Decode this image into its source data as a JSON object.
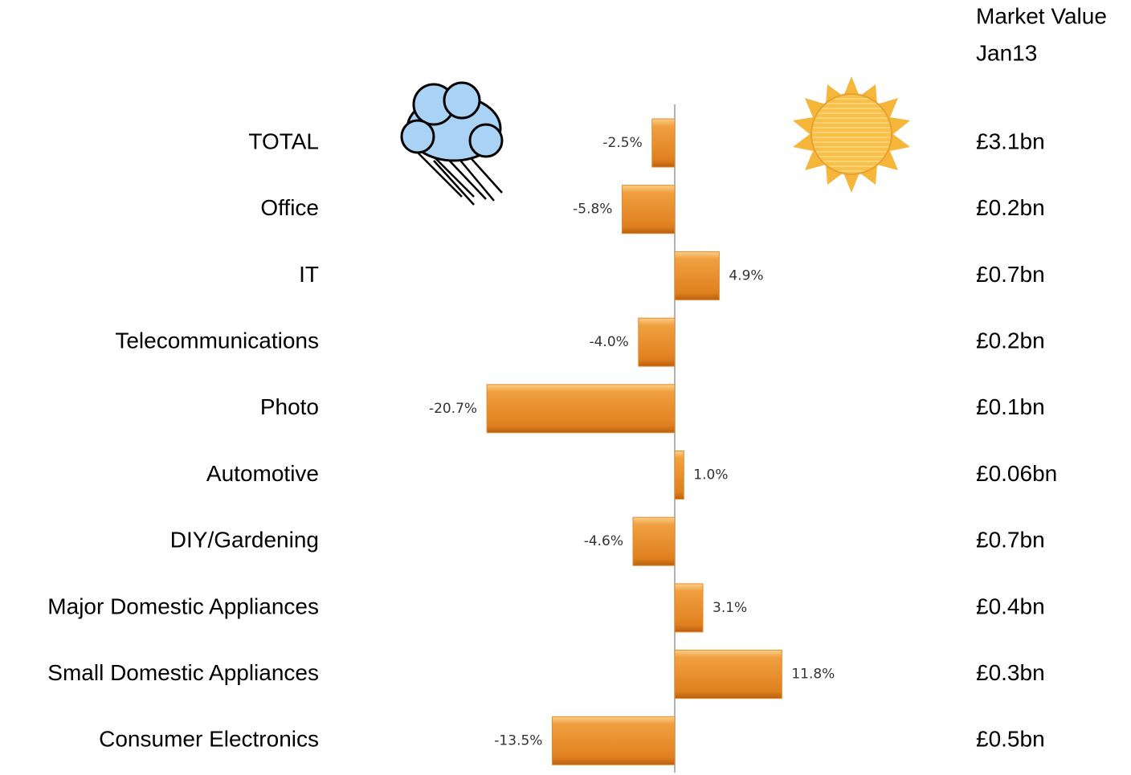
{
  "chart_data": {
    "type": "bar",
    "orientation": "horizontal",
    "categories": [
      "TOTAL",
      "Office",
      "IT",
      "Telecommunications",
      "Photo",
      "Automotive",
      "DIY/Gardening",
      "Major Domestic Appliances",
      "Small Domestic Appliances",
      "Consumer Electronics"
    ],
    "values": [
      -2.5,
      -5.8,
      4.9,
      -4.0,
      -20.7,
      1.0,
      -4.6,
      3.1,
      11.8,
      -13.5
    ],
    "value_labels": [
      "-2.5%",
      "-5.8%",
      "4.9%",
      "-4.0%",
      "-20.7%",
      "1.0%",
      "-4.6%",
      "3.1%",
      "11.8%",
      "-13.5%"
    ],
    "color": "#e8892a",
    "market_value_header": [
      "Market Value",
      "Jan13"
    ],
    "market_values": [
      "£3.1bn",
      "£0.2bn",
      "£0.7bn",
      "£0.2bn",
      "£0.1bn",
      "£0.06bn",
      "£0.7bn",
      "£0.4bn",
      "£0.3bn",
      "£0.5bn"
    ]
  }
}
